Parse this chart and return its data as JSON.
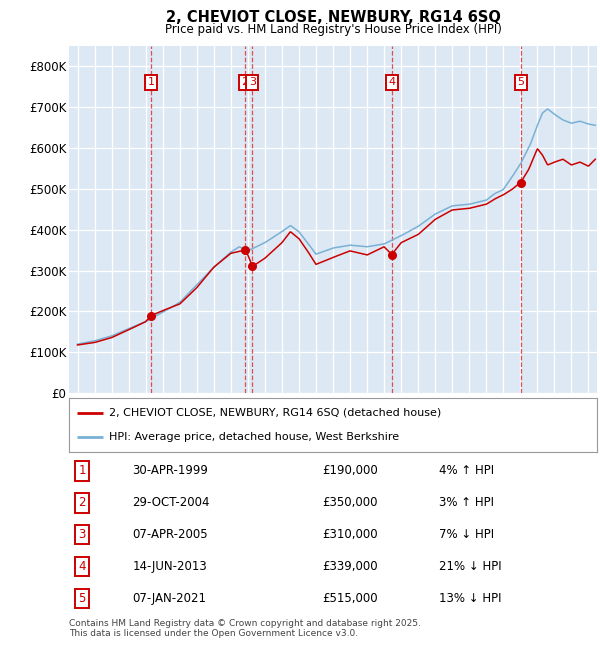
{
  "title": "2, CHEVIOT CLOSE, NEWBURY, RG14 6SQ",
  "subtitle": "Price paid vs. HM Land Registry's House Price Index (HPI)",
  "background_color": "#dce9f5",
  "sale_dates_num": [
    1999.33,
    2004.83,
    2005.27,
    2013.45,
    2021.02
  ],
  "sale_prices": [
    190000,
    350000,
    310000,
    339000,
    515000
  ],
  "sale_labels": [
    "1",
    "2",
    "3",
    "4",
    "5"
  ],
  "sale_dates_str": [
    "30-APR-1999",
    "29-OCT-2004",
    "07-APR-2005",
    "14-JUN-2013",
    "07-JAN-2021"
  ],
  "sale_prices_str": [
    "£190,000",
    "£350,000",
    "£310,000",
    "£339,000",
    "£515,000"
  ],
  "sale_hpi_pcts": [
    "4% ↑ HPI",
    "3% ↑ HPI",
    "7% ↓ HPI",
    "21% ↓ HPI",
    "13% ↓ HPI"
  ],
  "hpi_line_color": "#7ab0d4",
  "price_line_color": "#cc0000",
  "sale_marker_color": "#cc0000",
  "vline_color": "#dd3333",
  "legend_label_price": "2, CHEVIOT CLOSE, NEWBURY, RG14 6SQ (detached house)",
  "legend_label_hpi": "HPI: Average price, detached house, West Berkshire",
  "footnote": "Contains HM Land Registry data © Crown copyright and database right 2025.\nThis data is licensed under the Open Government Licence v3.0.",
  "ylim": [
    0,
    850000
  ],
  "yticks": [
    0,
    100000,
    200000,
    300000,
    400000,
    500000,
    600000,
    700000,
    800000
  ],
  "ytick_labels": [
    "£0",
    "£100K",
    "£200K",
    "£300K",
    "£400K",
    "£500K",
    "£600K",
    "£700K",
    "£800K"
  ],
  "xmin": 1994.5,
  "xmax": 2025.5,
  "hpi_key_x": [
    1995,
    1996,
    1997,
    1998,
    1999,
    2000,
    2001,
    2002,
    2003,
    2004,
    2004.5,
    2005,
    2006,
    2007,
    2007.5,
    2008,
    2008.5,
    2009,
    2010,
    2011,
    2012,
    2013,
    2014,
    2015,
    2016,
    2017,
    2018,
    2019,
    2019.5,
    2020,
    2020.5,
    2021,
    2021.3,
    2021.6,
    2022,
    2022.3,
    2022.6,
    2023,
    2023.5,
    2024,
    2024.5,
    2025,
    2025.4
  ],
  "hpi_key_y": [
    120000,
    128000,
    140000,
    158000,
    175000,
    198000,
    222000,
    265000,
    308000,
    345000,
    358000,
    348000,
    368000,
    395000,
    410000,
    395000,
    368000,
    340000,
    355000,
    362000,
    358000,
    365000,
    385000,
    408000,
    438000,
    458000,
    462000,
    472000,
    488000,
    498000,
    528000,
    560000,
    585000,
    610000,
    655000,
    685000,
    695000,
    682000,
    668000,
    660000,
    665000,
    658000,
    655000
  ],
  "price_key_x": [
    1995,
    1996,
    1997,
    1998,
    1999,
    1999.33,
    2000,
    2001,
    2002,
    2003,
    2004,
    2004.83,
    2005.0,
    2005.27,
    2006,
    2007,
    2007.5,
    2008,
    2008.5,
    2009,
    2010,
    2011,
    2012,
    2013,
    2013.45,
    2014,
    2015,
    2016,
    2017,
    2018,
    2019,
    2019.5,
    2020,
    2020.5,
    2021.0,
    2021.02,
    2021.5,
    2022,
    2022.3,
    2022.6,
    2023,
    2023.5,
    2024,
    2024.5,
    2025,
    2025.4
  ],
  "price_key_y": [
    118000,
    124000,
    136000,
    155000,
    175000,
    190000,
    202000,
    218000,
    258000,
    308000,
    342000,
    350000,
    338000,
    310000,
    330000,
    368000,
    395000,
    378000,
    348000,
    315000,
    332000,
    348000,
    338000,
    358000,
    339000,
    368000,
    388000,
    425000,
    448000,
    452000,
    462000,
    475000,
    485000,
    498000,
    515000,
    515000,
    548000,
    598000,
    582000,
    558000,
    565000,
    572000,
    558000,
    565000,
    555000,
    572000
  ]
}
